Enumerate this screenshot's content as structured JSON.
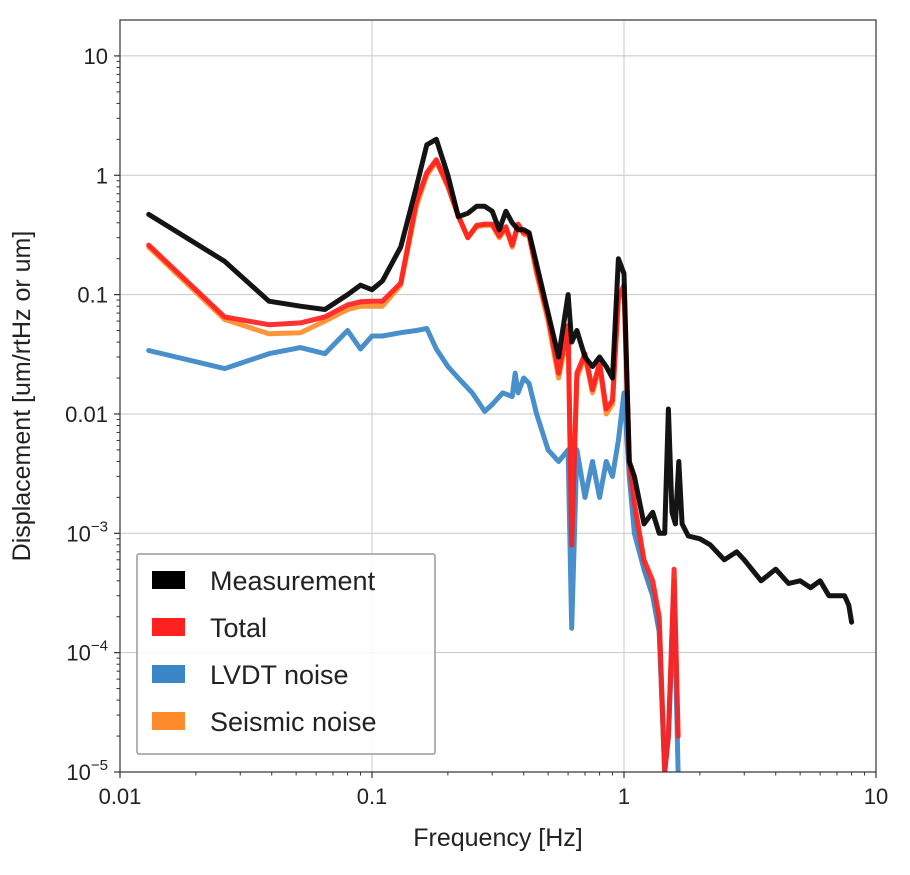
{
  "chart_data": {
    "type": "line",
    "title": "",
    "xlabel": "Frequency [Hz]",
    "ylabel": "Displacement [um/rtHz or um]",
    "xscale": "log",
    "yscale": "log",
    "xlim": [
      0.01,
      10
    ],
    "ylim": [
      1e-05,
      20
    ],
    "grid": true,
    "legend_position": "lower-left",
    "x_ticks": [
      {
        "value": 0.01,
        "label": "0.01"
      },
      {
        "value": 0.1,
        "label": "0.1"
      },
      {
        "value": 1,
        "label": "1"
      },
      {
        "value": 10,
        "label": "10"
      }
    ],
    "y_ticks": [
      {
        "value": 1e-05,
        "base": "10",
        "exp": "−5"
      },
      {
        "value": 0.0001,
        "base": "10",
        "exp": "−4"
      },
      {
        "value": 0.001,
        "base": "10",
        "exp": "−3"
      },
      {
        "value": 0.01,
        "label": "0.01"
      },
      {
        "value": 0.1,
        "label": "0.1"
      },
      {
        "value": 1,
        "label": "1"
      },
      {
        "value": 10,
        "label": "10"
      }
    ],
    "series": [
      {
        "name": "Seismic noise",
        "color": "#ff8c2a",
        "x": [
          0.013,
          0.026,
          0.039,
          0.052,
          0.065,
          0.08,
          0.09,
          0.1,
          0.11,
          0.13,
          0.15,
          0.165,
          0.18,
          0.2,
          0.22,
          0.24,
          0.26,
          0.28,
          0.3,
          0.32,
          0.34,
          0.36,
          0.38,
          0.4,
          0.42,
          0.45,
          0.5,
          0.55,
          0.6,
          0.62,
          0.65,
          0.7,
          0.75,
          0.8,
          0.85,
          0.9,
          0.95,
          1.0,
          1.05,
          1.1,
          1.2,
          1.3,
          1.38,
          1.45,
          1.5,
          1.58,
          1.64
        ],
        "y": [
          0.25,
          0.062,
          0.047,
          0.048,
          0.06,
          0.075,
          0.08,
          0.08,
          0.08,
          0.12,
          0.55,
          1.0,
          1.3,
          0.8,
          0.45,
          0.3,
          0.37,
          0.38,
          0.38,
          0.3,
          0.36,
          0.25,
          0.38,
          0.32,
          0.31,
          0.15,
          0.06,
          0.02,
          0.05,
          0.0008,
          0.02,
          0.03,
          0.015,
          0.025,
          0.01,
          0.012,
          0.09,
          0.11,
          0.003,
          0.0015,
          0.0005,
          0.0003,
          0.00015,
          1e-05,
          2e-05,
          0.0004,
          2e-05
        ]
      },
      {
        "name": "LVDT noise",
        "color": "#3a86c8",
        "x": [
          0.013,
          0.026,
          0.039,
          0.052,
          0.065,
          0.08,
          0.09,
          0.1,
          0.11,
          0.13,
          0.15,
          0.165,
          0.18,
          0.2,
          0.22,
          0.25,
          0.28,
          0.3,
          0.33,
          0.36,
          0.37,
          0.38,
          0.4,
          0.42,
          0.45,
          0.5,
          0.55,
          0.6,
          0.62,
          0.65,
          0.7,
          0.75,
          0.8,
          0.85,
          0.9,
          0.95,
          1.0,
          1.05,
          1.1,
          1.2,
          1.3,
          1.38,
          1.45,
          1.5,
          1.58,
          1.64
        ],
        "y": [
          0.034,
          0.024,
          0.032,
          0.036,
          0.032,
          0.05,
          0.035,
          0.045,
          0.045,
          0.048,
          0.05,
          0.052,
          0.035,
          0.025,
          0.02,
          0.015,
          0.0105,
          0.012,
          0.015,
          0.014,
          0.022,
          0.015,
          0.02,
          0.018,
          0.01,
          0.005,
          0.004,
          0.005,
          0.00016,
          0.005,
          0.002,
          0.004,
          0.002,
          0.004,
          0.003,
          0.006,
          0.015,
          0.003,
          0.001,
          0.0005,
          0.0003,
          0.00015,
          1e-05,
          2e-05,
          0.0003,
          1e-05
        ]
      },
      {
        "name": "Total",
        "color": "#ff2020",
        "x": [
          0.013,
          0.026,
          0.039,
          0.052,
          0.065,
          0.08,
          0.09,
          0.1,
          0.11,
          0.13,
          0.15,
          0.165,
          0.18,
          0.2,
          0.22,
          0.24,
          0.26,
          0.28,
          0.3,
          0.32,
          0.34,
          0.36,
          0.38,
          0.4,
          0.42,
          0.45,
          0.5,
          0.55,
          0.6,
          0.62,
          0.65,
          0.7,
          0.75,
          0.8,
          0.85,
          0.9,
          0.95,
          1.0,
          1.05,
          1.1,
          1.2,
          1.3,
          1.38,
          1.45,
          1.5,
          1.58,
          1.64
        ],
        "y": [
          0.26,
          0.065,
          0.056,
          0.058,
          0.065,
          0.082,
          0.087,
          0.088,
          0.088,
          0.125,
          0.6,
          1.05,
          1.35,
          0.82,
          0.46,
          0.3,
          0.38,
          0.39,
          0.39,
          0.31,
          0.37,
          0.26,
          0.39,
          0.33,
          0.32,
          0.16,
          0.065,
          0.022,
          0.055,
          0.0008,
          0.022,
          0.032,
          0.016,
          0.027,
          0.011,
          0.013,
          0.095,
          0.12,
          0.004,
          0.0018,
          0.0006,
          0.0004,
          0.0002,
          1e-05,
          2e-05,
          0.0005,
          2e-05
        ]
      },
      {
        "name": "Measurement",
        "color": "#000000",
        "x": [
          0.013,
          0.026,
          0.039,
          0.052,
          0.065,
          0.08,
          0.09,
          0.1,
          0.11,
          0.13,
          0.15,
          0.165,
          0.18,
          0.2,
          0.22,
          0.24,
          0.26,
          0.28,
          0.3,
          0.32,
          0.34,
          0.36,
          0.38,
          0.4,
          0.42,
          0.45,
          0.5,
          0.55,
          0.6,
          0.62,
          0.65,
          0.7,
          0.75,
          0.8,
          0.85,
          0.9,
          0.95,
          1.0,
          1.05,
          1.1,
          1.2,
          1.3,
          1.38,
          1.45,
          1.5,
          1.55,
          1.6,
          1.65,
          1.7,
          1.8,
          2.0,
          2.2,
          2.5,
          2.8,
          3.0,
          3.5,
          4.0,
          4.5,
          5.0,
          5.5,
          6.0,
          6.5,
          7.0,
          7.5,
          7.8,
          8.0
        ],
        "y": [
          0.47,
          0.19,
          0.088,
          0.08,
          0.075,
          0.1,
          0.12,
          0.11,
          0.13,
          0.25,
          0.8,
          1.8,
          2.0,
          1.0,
          0.45,
          0.48,
          0.55,
          0.55,
          0.5,
          0.35,
          0.5,
          0.4,
          0.35,
          0.35,
          0.33,
          0.18,
          0.07,
          0.03,
          0.1,
          0.04,
          0.05,
          0.03,
          0.025,
          0.03,
          0.025,
          0.02,
          0.2,
          0.15,
          0.004,
          0.003,
          0.0012,
          0.0015,
          0.001,
          0.001,
          0.011,
          0.0015,
          0.0012,
          0.004,
          0.0012,
          0.00095,
          0.0009,
          0.0008,
          0.0006,
          0.0007,
          0.0006,
          0.0004,
          0.0005,
          0.00038,
          0.0004,
          0.00035,
          0.0004,
          0.0003,
          0.0003,
          0.0003,
          0.00025,
          0.00018
        ]
      }
    ],
    "legend_order": [
      "Measurement",
      "Total",
      "LVDT noise",
      "Seismic noise"
    ]
  }
}
